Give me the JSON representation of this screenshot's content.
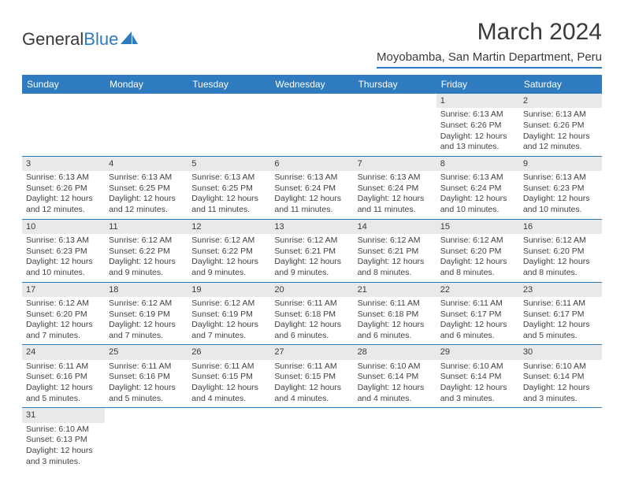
{
  "logo": {
    "text_a": "General",
    "text_b": "Blue"
  },
  "title": "March 2024",
  "location": "Moyobamba, San Martin Department, Peru",
  "colors": {
    "accent": "#2f7bbf",
    "header_bg": "#2f7bbf",
    "daynum_bg": "#e9e9e9",
    "text": "#414141"
  },
  "daynames": [
    "Sunday",
    "Monday",
    "Tuesday",
    "Wednesday",
    "Thursday",
    "Friday",
    "Saturday"
  ],
  "weeks": [
    [
      null,
      null,
      null,
      null,
      null,
      {
        "n": "1",
        "sunrise": "Sunrise: 6:13 AM",
        "sunset": "Sunset: 6:26 PM",
        "day": "Daylight: 12 hours and 13 minutes."
      },
      {
        "n": "2",
        "sunrise": "Sunrise: 6:13 AM",
        "sunset": "Sunset: 6:26 PM",
        "day": "Daylight: 12 hours and 12 minutes."
      }
    ],
    [
      {
        "n": "3",
        "sunrise": "Sunrise: 6:13 AM",
        "sunset": "Sunset: 6:26 PM",
        "day": "Daylight: 12 hours and 12 minutes."
      },
      {
        "n": "4",
        "sunrise": "Sunrise: 6:13 AM",
        "sunset": "Sunset: 6:25 PM",
        "day": "Daylight: 12 hours and 12 minutes."
      },
      {
        "n": "5",
        "sunrise": "Sunrise: 6:13 AM",
        "sunset": "Sunset: 6:25 PM",
        "day": "Daylight: 12 hours and 11 minutes."
      },
      {
        "n": "6",
        "sunrise": "Sunrise: 6:13 AM",
        "sunset": "Sunset: 6:24 PM",
        "day": "Daylight: 12 hours and 11 minutes."
      },
      {
        "n": "7",
        "sunrise": "Sunrise: 6:13 AM",
        "sunset": "Sunset: 6:24 PM",
        "day": "Daylight: 12 hours and 11 minutes."
      },
      {
        "n": "8",
        "sunrise": "Sunrise: 6:13 AM",
        "sunset": "Sunset: 6:24 PM",
        "day": "Daylight: 12 hours and 10 minutes."
      },
      {
        "n": "9",
        "sunrise": "Sunrise: 6:13 AM",
        "sunset": "Sunset: 6:23 PM",
        "day": "Daylight: 12 hours and 10 minutes."
      }
    ],
    [
      {
        "n": "10",
        "sunrise": "Sunrise: 6:13 AM",
        "sunset": "Sunset: 6:23 PM",
        "day": "Daylight: 12 hours and 10 minutes."
      },
      {
        "n": "11",
        "sunrise": "Sunrise: 6:12 AM",
        "sunset": "Sunset: 6:22 PM",
        "day": "Daylight: 12 hours and 9 minutes."
      },
      {
        "n": "12",
        "sunrise": "Sunrise: 6:12 AM",
        "sunset": "Sunset: 6:22 PM",
        "day": "Daylight: 12 hours and 9 minutes."
      },
      {
        "n": "13",
        "sunrise": "Sunrise: 6:12 AM",
        "sunset": "Sunset: 6:21 PM",
        "day": "Daylight: 12 hours and 9 minutes."
      },
      {
        "n": "14",
        "sunrise": "Sunrise: 6:12 AM",
        "sunset": "Sunset: 6:21 PM",
        "day": "Daylight: 12 hours and 8 minutes."
      },
      {
        "n": "15",
        "sunrise": "Sunrise: 6:12 AM",
        "sunset": "Sunset: 6:20 PM",
        "day": "Daylight: 12 hours and 8 minutes."
      },
      {
        "n": "16",
        "sunrise": "Sunrise: 6:12 AM",
        "sunset": "Sunset: 6:20 PM",
        "day": "Daylight: 12 hours and 8 minutes."
      }
    ],
    [
      {
        "n": "17",
        "sunrise": "Sunrise: 6:12 AM",
        "sunset": "Sunset: 6:20 PM",
        "day": "Daylight: 12 hours and 7 minutes."
      },
      {
        "n": "18",
        "sunrise": "Sunrise: 6:12 AM",
        "sunset": "Sunset: 6:19 PM",
        "day": "Daylight: 12 hours and 7 minutes."
      },
      {
        "n": "19",
        "sunrise": "Sunrise: 6:12 AM",
        "sunset": "Sunset: 6:19 PM",
        "day": "Daylight: 12 hours and 7 minutes."
      },
      {
        "n": "20",
        "sunrise": "Sunrise: 6:11 AM",
        "sunset": "Sunset: 6:18 PM",
        "day": "Daylight: 12 hours and 6 minutes."
      },
      {
        "n": "21",
        "sunrise": "Sunrise: 6:11 AM",
        "sunset": "Sunset: 6:18 PM",
        "day": "Daylight: 12 hours and 6 minutes."
      },
      {
        "n": "22",
        "sunrise": "Sunrise: 6:11 AM",
        "sunset": "Sunset: 6:17 PM",
        "day": "Daylight: 12 hours and 6 minutes."
      },
      {
        "n": "23",
        "sunrise": "Sunrise: 6:11 AM",
        "sunset": "Sunset: 6:17 PM",
        "day": "Daylight: 12 hours and 5 minutes."
      }
    ],
    [
      {
        "n": "24",
        "sunrise": "Sunrise: 6:11 AM",
        "sunset": "Sunset: 6:16 PM",
        "day": "Daylight: 12 hours and 5 minutes."
      },
      {
        "n": "25",
        "sunrise": "Sunrise: 6:11 AM",
        "sunset": "Sunset: 6:16 PM",
        "day": "Daylight: 12 hours and 5 minutes."
      },
      {
        "n": "26",
        "sunrise": "Sunrise: 6:11 AM",
        "sunset": "Sunset: 6:15 PM",
        "day": "Daylight: 12 hours and 4 minutes."
      },
      {
        "n": "27",
        "sunrise": "Sunrise: 6:11 AM",
        "sunset": "Sunset: 6:15 PM",
        "day": "Daylight: 12 hours and 4 minutes."
      },
      {
        "n": "28",
        "sunrise": "Sunrise: 6:10 AM",
        "sunset": "Sunset: 6:14 PM",
        "day": "Daylight: 12 hours and 4 minutes."
      },
      {
        "n": "29",
        "sunrise": "Sunrise: 6:10 AM",
        "sunset": "Sunset: 6:14 PM",
        "day": "Daylight: 12 hours and 3 minutes."
      },
      {
        "n": "30",
        "sunrise": "Sunrise: 6:10 AM",
        "sunset": "Sunset: 6:14 PM",
        "day": "Daylight: 12 hours and 3 minutes."
      }
    ],
    [
      {
        "n": "31",
        "sunrise": "Sunrise: 6:10 AM",
        "sunset": "Sunset: 6:13 PM",
        "day": "Daylight: 12 hours and 3 minutes."
      },
      null,
      null,
      null,
      null,
      null,
      null
    ]
  ]
}
